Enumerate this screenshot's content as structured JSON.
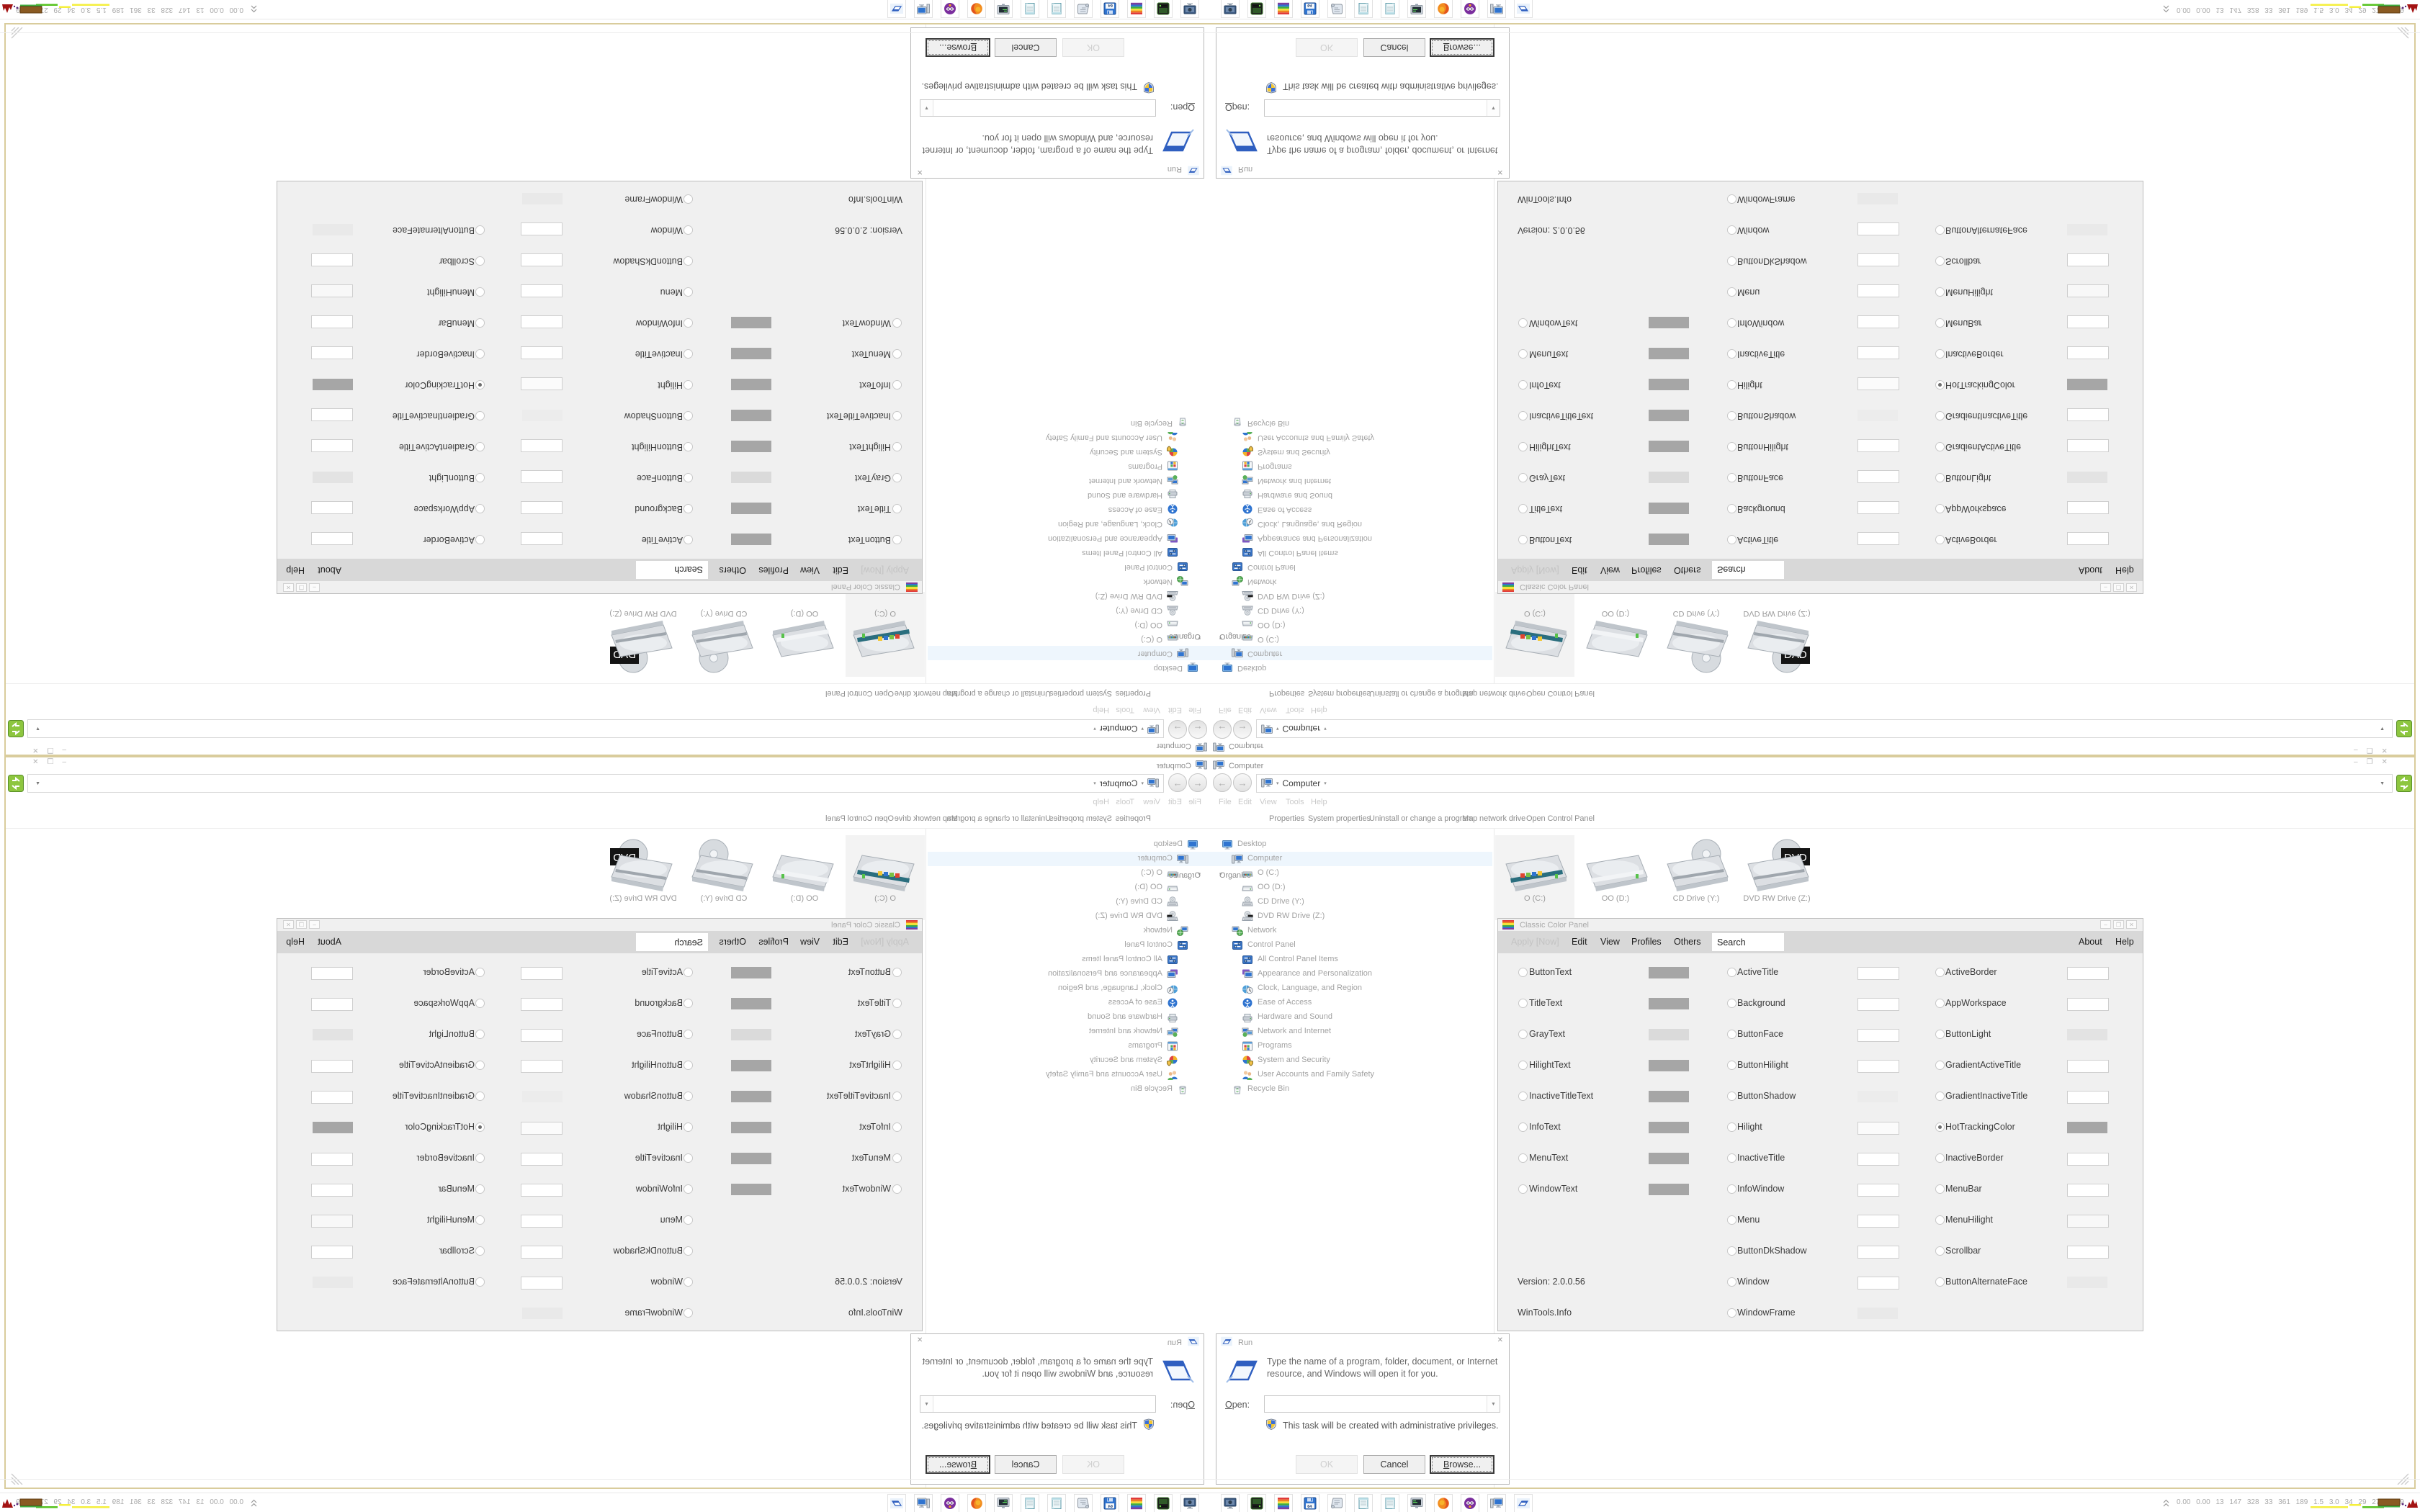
{
  "explorer": {
    "tab_title": "Computer",
    "window_controls": {
      "minimize": "–",
      "restore": "❐",
      "close": "✕"
    },
    "address": {
      "location": "Computer",
      "chevron": "▾",
      "dropdown": "▼"
    },
    "menu": [
      "File",
      "Edit",
      "View",
      "Tools",
      "Help"
    ],
    "organize_caret": "▾",
    "command_bar": [
      "Organize",
      "Properties",
      "System properties",
      "Uninstall or change a program",
      "Map network drive",
      "Open Control Panel"
    ],
    "tree": [
      {
        "label": "Desktop",
        "level": 0,
        "icon": "desktop"
      },
      {
        "label": "Computer",
        "level": 1,
        "icon": "computer",
        "selected": true
      },
      {
        "label": "O (C:)",
        "level": 2,
        "icon": "drive-os"
      },
      {
        "label": "OO (D:)",
        "level": 2,
        "icon": "drive-plain"
      },
      {
        "label": "CD Drive (Y:)",
        "level": 2,
        "icon": "drive-cd"
      },
      {
        "label": "DVD RW Drive (Z:)",
        "level": 2,
        "icon": "drive-dvd"
      },
      {
        "label": "Network",
        "level": 1,
        "icon": "network"
      },
      {
        "label": "Control Panel",
        "level": 1,
        "icon": "control-panel"
      },
      {
        "label": "All Control Panel Items",
        "level": 2,
        "icon": "control-panel"
      },
      {
        "label": "Appearance and Personalization",
        "level": 2,
        "icon": "appearance"
      },
      {
        "label": "Clock, Language, and Region",
        "level": 2,
        "icon": "clock"
      },
      {
        "label": "Ease of Access",
        "level": 2,
        "icon": "ease"
      },
      {
        "label": "Hardware and Sound",
        "level": 2,
        "icon": "hardware"
      },
      {
        "label": "Network and Internet",
        "level": 2,
        "icon": "net-internet"
      },
      {
        "label": "Programs",
        "level": 2,
        "icon": "programs"
      },
      {
        "label": "System and Security",
        "level": 2,
        "icon": "system-security"
      },
      {
        "label": "User Accounts and Family Safety",
        "level": 2,
        "icon": "users"
      },
      {
        "label": "Recycle Bin",
        "level": 1,
        "icon": "recycle"
      }
    ],
    "drives": [
      {
        "label": "O (C:)",
        "icon": "tile-os",
        "selected": true
      },
      {
        "label": "OO (D:)",
        "icon": "tile-plain"
      },
      {
        "label": "CD Drive (Y:)",
        "icon": "tile-cd"
      },
      {
        "label": "DVD RW Drive (Z:)",
        "icon": "tile-dvd"
      }
    ]
  },
  "color_panel": {
    "title": "Classic Color Panel",
    "window_controls": {
      "minimize": "–",
      "restore": "❐",
      "close": "✕"
    },
    "menu_disabled": "Apply [Now]",
    "menu_left": [
      "Edit",
      "View",
      "Profiles",
      "Others"
    ],
    "search_value": "Search",
    "menu_right": [
      "About",
      "Help"
    ],
    "version": "Version: 2.0.0.56",
    "website": "WinTools.Info",
    "columns": [
      {
        "entries": [
          {
            "name": "ButtonText",
            "swatch": "#a6a6a6"
          },
          {
            "name": "TitleText",
            "swatch": "#a6a6a6"
          },
          {
            "name": "GrayText",
            "swatch": "#dadada"
          },
          {
            "name": "HilightText",
            "swatch": "#a6a6a6"
          },
          {
            "name": "InactiveTitleText",
            "swatch": "#a6a6a6"
          },
          {
            "name": "InfoText",
            "swatch": "#a6a6a6"
          },
          {
            "name": "MenuText",
            "swatch": "#a6a6a6"
          },
          {
            "name": "WindowText",
            "swatch": "#a6a6a6"
          }
        ]
      },
      {
        "entries": [
          {
            "name": "ActiveTitle",
            "swatch": "#ffffff",
            "bordered": true
          },
          {
            "name": "Background",
            "swatch": "#ffffff",
            "bordered": true
          },
          {
            "name": "ButtonFace",
            "swatch": "#ffffff",
            "bordered": true
          },
          {
            "name": "ButtonHilight",
            "swatch": "#ffffff",
            "bordered": true
          },
          {
            "name": "ButtonShadow",
            "swatch": "#ececec"
          },
          {
            "name": "Hilight",
            "swatch": "#fbfbfb",
            "bordered": true
          },
          {
            "name": "InactiveTitle",
            "swatch": "#ffffff",
            "bordered": true
          },
          {
            "name": "InfoWindow",
            "swatch": "#ffffff",
            "bordered": true
          },
          {
            "name": "Menu",
            "swatch": "#ffffff",
            "bordered": true
          },
          {
            "name": "ButtonDkShadow",
            "swatch": "#ffffff",
            "bordered": true
          },
          {
            "name": "Window",
            "swatch": "#ffffff",
            "bordered": true
          },
          {
            "name": "WindowFrame",
            "swatch": "#e9e9e9"
          }
        ]
      },
      {
        "entries": [
          {
            "name": "ActiveBorder",
            "swatch": "#ffffff",
            "bordered": true
          },
          {
            "name": "AppWorkspace",
            "swatch": "#ffffff",
            "bordered": true
          },
          {
            "name": "ButtonLight",
            "swatch": "#e3e3e3"
          },
          {
            "name": "GradientActiveTitle",
            "swatch": "#ffffff",
            "bordered": true
          },
          {
            "name": "GradientInactiveTitle",
            "swatch": "#ffffff",
            "bordered": true
          },
          {
            "name": "HotTrackingColor",
            "swatch": "#a6a6a6",
            "selected": true
          },
          {
            "name": "InactiveBorder",
            "swatch": "#ffffff",
            "bordered": true
          },
          {
            "name": "MenuBar",
            "swatch": "#ffffff",
            "bordered": true
          },
          {
            "name": "MenuHilight",
            "swatch": "#f8f8f8",
            "bordered": true
          },
          {
            "name": "Scrollbar",
            "swatch": "#ffffff",
            "bordered": true
          },
          {
            "name": "ButtonAlternateFace",
            "swatch": "#e9e9e9"
          }
        ]
      }
    ]
  },
  "run_dialog": {
    "title": "Run",
    "close": "✕",
    "message": "Type the name of a program, folder, document, or Internet resource, and Windows will open it for you.",
    "open_accel": "O",
    "open_rest": "pen:",
    "combo_value": "",
    "combo_dropdown": "▼",
    "admin_note": "This task will be created with administrative privileges.",
    "ok_label": "OK",
    "cancel_label": "Cancel",
    "browse_accel": "B",
    "browse_rest": "rowse..."
  },
  "taskbar": {
    "apps": [
      "pc-dark",
      "drive-green",
      "rainbow",
      "floppy64",
      "scroll",
      "notepad",
      "notepad",
      "regedit",
      "firefox",
      "purple-app",
      "computer-mon",
      "run"
    ],
    "tray_numbers": "0.00 0.00 13 147 328 33 361 189 1.5 3.0 34 29 27583839"
  },
  "colors": {
    "window_border_tan": "#d9cc9c",
    "menu_bar_gray": "#d8d8d8",
    "panel_bg": "#f0f0f0",
    "tree_selection": "#eef6fd",
    "tray_graph": [
      "#f5ef3c",
      "#56c21e",
      "#8a5a22",
      "#5c2a7a",
      "#a31313"
    ]
  }
}
